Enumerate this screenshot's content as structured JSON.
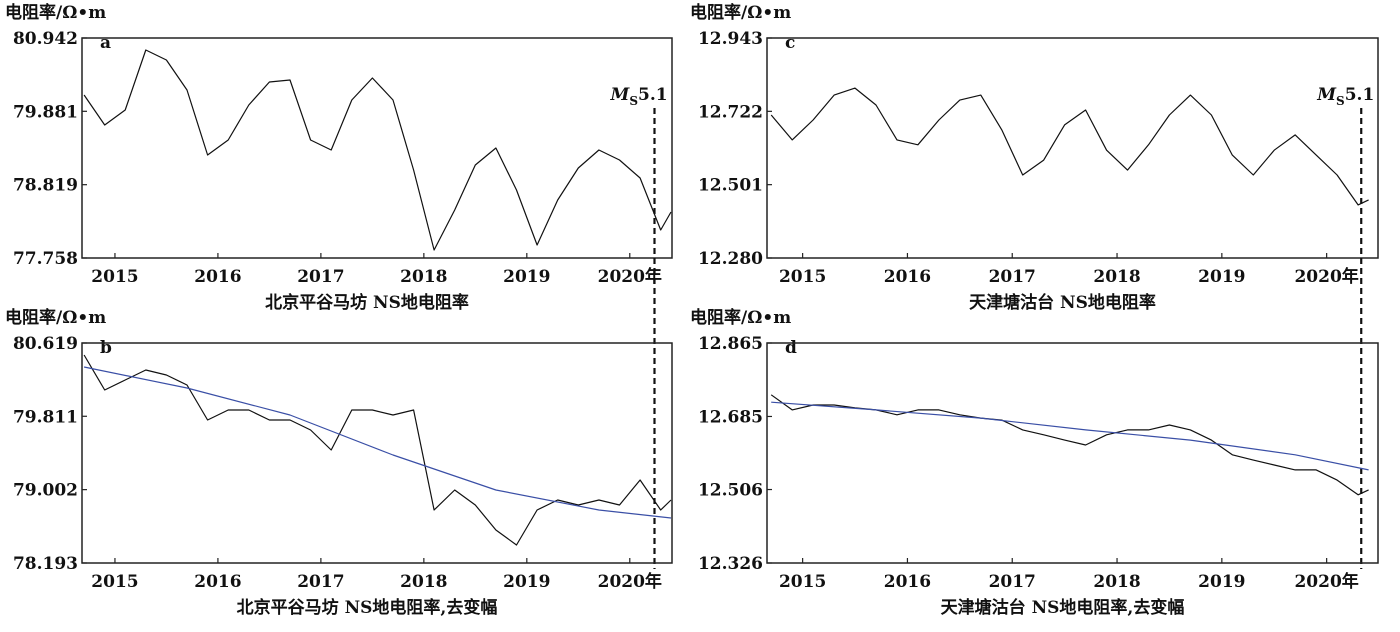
{
  "chart_data": [
    {
      "type": "line",
      "panel": "a",
      "y_label": "电阻率/Ω•m",
      "title": "北京平谷马坊 NS地电阻率",
      "x": [
        2014.7,
        2014.9,
        2015.1,
        2015.3,
        2015.5,
        2015.7,
        2015.9,
        2016.1,
        2016.3,
        2016.5,
        2016.7,
        2016.9,
        2017.1,
        2017.3,
        2017.5,
        2017.7,
        2017.9,
        2018.1,
        2018.3,
        2018.5,
        2018.7,
        2018.9,
        2019.1,
        2019.3,
        2019.5,
        2019.7,
        2019.9,
        2020.1,
        2020.3,
        2020.4
      ],
      "series": [
        {
          "color": "#111111",
          "values": [
            80.117,
            79.683,
            79.9,
            80.768,
            80.624,
            80.189,
            79.249,
            79.466,
            79.972,
            80.305,
            80.334,
            79.466,
            79.321,
            80.045,
            80.363,
            80.045,
            79.032,
            77.874,
            78.453,
            79.104,
            79.35,
            78.742,
            77.946,
            78.597,
            79.061,
            79.321,
            79.176,
            78.916,
            78.163,
            78.424
          ]
        }
      ],
      "xlim": [
        2014.68,
        2020.41
      ],
      "xticks": [
        2015,
        2016,
        2017,
        2018,
        2019,
        {
          "value": 2020,
          "label": "2020年"
        }
      ],
      "ylim": [
        77.758,
        80.942
      ],
      "yticks": [
        77.758,
        78.819,
        79.881,
        80.942
      ],
      "annotation": {
        "x": 2020.24,
        "main": "M",
        "sub": "S",
        "rest": "5.1"
      }
    },
    {
      "type": "line",
      "panel": "b",
      "y_label": "电阻率/Ω•m",
      "title": "北京平谷马坊 NS地电阻率,去变幅",
      "x": [
        2014.7,
        2014.9,
        2015.1,
        2015.3,
        2015.5,
        2015.7,
        2015.9,
        2016.1,
        2016.3,
        2016.5,
        2016.7,
        2016.9,
        2017.1,
        2017.3,
        2017.5,
        2017.7,
        2017.9,
        2018.1,
        2018.3,
        2018.5,
        2018.7,
        2018.9,
        2019.1,
        2019.3,
        2019.5,
        2019.7,
        2019.9,
        2020.1,
        2020.3,
        2020.4
      ],
      "series": [
        {
          "color": "#111111",
          "values": [
            80.487,
            80.101,
            80.211,
            80.321,
            80.266,
            80.156,
            79.77,
            79.88,
            79.88,
            79.77,
            79.77,
            79.66,
            79.439,
            79.88,
            79.88,
            79.825,
            79.88,
            78.777,
            78.998,
            78.833,
            78.557,
            78.392,
            78.777,
            78.888,
            78.833,
            78.888,
            78.833,
            79.108,
            78.777,
            78.888
          ]
        }
      ],
      "trend": {
        "color": "#3a4fa6",
        "x": [
          2014.7,
          2015.7,
          2016.7,
          2017.7,
          2018.7,
          2019.7,
          2020.4
        ],
        "values": [
          80.354,
          80.123,
          79.825,
          79.384,
          78.998,
          78.777,
          78.689
        ]
      },
      "xlim": [
        2014.68,
        2020.41
      ],
      "xticks": [
        2015,
        2016,
        2017,
        2018,
        2019,
        {
          "value": 2020,
          "label": "2020年"
        }
      ],
      "ylim": [
        78.193,
        80.619
      ],
      "yticks": [
        78.193,
        79.002,
        79.811,
        80.619
      ]
    },
    {
      "type": "line",
      "panel": "c",
      "y_label": "电阻率/Ω•m",
      "title": "天津塘沽台  NS地电阻率",
      "x": [
        2014.7,
        2014.9,
        2015.1,
        2015.3,
        2015.5,
        2015.7,
        2015.9,
        2016.1,
        2016.3,
        2016.5,
        2016.7,
        2016.9,
        2017.1,
        2017.3,
        2017.5,
        2017.7,
        2017.9,
        2018.1,
        2018.3,
        2018.5,
        2018.7,
        2018.9,
        2019.1,
        2019.3,
        2019.5,
        2019.7,
        2019.9,
        2020.1,
        2020.3,
        2020.4
      ],
      "series": [
        {
          "color": "#111111",
          "values": [
            12.711,
            12.636,
            12.696,
            12.771,
            12.792,
            12.741,
            12.636,
            12.621,
            12.696,
            12.756,
            12.771,
            12.666,
            12.53,
            12.575,
            12.681,
            12.726,
            12.605,
            12.545,
            12.621,
            12.711,
            12.771,
            12.711,
            12.59,
            12.53,
            12.605,
            12.651,
            12.59,
            12.53,
            12.44,
            12.455
          ]
        }
      ],
      "xlim": [
        2014.66,
        2020.49
      ],
      "xticks": [
        2015,
        2016,
        2017,
        2018,
        2019,
        {
          "value": 2020,
          "label": "2020年"
        }
      ],
      "ylim": [
        12.28,
        12.943
      ],
      "yticks": [
        {
          "value": 12.28,
          "label": "12.280"
        },
        12.501,
        12.722,
        12.943
      ],
      "annotation": {
        "x": 2020.33,
        "main": "M",
        "sub": "S",
        "rest": "5.1"
      }
    },
    {
      "type": "line",
      "panel": "d",
      "y_label": "电阻率/Ω•m",
      "title": "天津塘沽台  NS地电阻率,去变幅",
      "x": [
        2014.7,
        2014.9,
        2015.1,
        2015.3,
        2015.5,
        2015.7,
        2015.9,
        2016.1,
        2016.3,
        2016.5,
        2016.7,
        2016.9,
        2017.1,
        2017.3,
        2017.5,
        2017.7,
        2017.9,
        2018.1,
        2018.3,
        2018.5,
        2018.7,
        2018.9,
        2019.1,
        2019.3,
        2019.5,
        2019.7,
        2019.9,
        2020.1,
        2020.3,
        2020.4
      ],
      "series": [
        {
          "color": "#111111",
          "values": [
            12.738,
            12.701,
            12.713,
            12.713,
            12.706,
            12.701,
            12.689,
            12.701,
            12.701,
            12.689,
            12.681,
            12.676,
            12.652,
            12.64,
            12.627,
            12.615,
            12.64,
            12.652,
            12.652,
            12.664,
            12.652,
            12.627,
            12.591,
            12.578,
            12.566,
            12.554,
            12.554,
            12.529,
            12.493,
            12.505
          ]
        }
      ],
      "trend": {
        "color": "#3a4fa6",
        "x": [
          2014.7,
          2015.7,
          2016.7,
          2017.7,
          2018.7,
          2019.7,
          2020.4
        ],
        "values": [
          12.72,
          12.701,
          12.681,
          12.652,
          12.627,
          12.591,
          12.554
        ]
      },
      "xlim": [
        2014.66,
        2020.49
      ],
      "xticks": [
        2015,
        2016,
        2017,
        2018,
        2019,
        {
          "value": 2020,
          "label": "2020年"
        }
      ],
      "ylim": [
        12.326,
        12.865
      ],
      "yticks": [
        12.326,
        12.506,
        12.685,
        12.865
      ]
    }
  ]
}
